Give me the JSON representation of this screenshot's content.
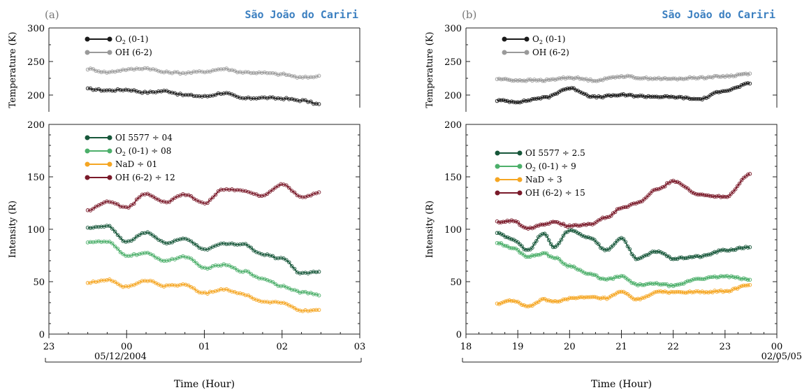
{
  "figure": {
    "panels": [
      {
        "label": "(a)",
        "site": "São João do Cariri",
        "date_label": "05/12/2004",
        "xlabel": "Time (Hour)",
        "x_ticks": [
          "23",
          "00",
          "01",
          "02",
          "03"
        ],
        "temp_ylabel": "Temperature (K)",
        "temp_ticks": [
          "200",
          "250",
          "300"
        ],
        "int_ylabel": "Intensity (R)",
        "int_ticks": [
          "0",
          "50",
          "100",
          "150",
          "200"
        ],
        "temp_legend": [
          {
            "prefix": "O",
            "sub": "2",
            "suffix": " (0-1)"
          },
          {
            "prefix": "OH (6-2)",
            "sub": "",
            "suffix": ""
          }
        ],
        "int_legend": [
          {
            "prefix": "OI 5577 ÷ 04",
            "sub": "",
            "suffix": ""
          },
          {
            "prefix": "O",
            "sub": "2",
            "suffix": " (0-1) ÷ 08"
          },
          {
            "prefix": "NaD ÷ 01",
            "sub": "",
            "suffix": ""
          },
          {
            "prefix": "OH (6-2) ÷ 12",
            "sub": "",
            "suffix": ""
          }
        ]
      },
      {
        "label": "(b)",
        "site": "São João do Cariri",
        "date_label": "02/05/05",
        "xlabel": "Time (Hour)",
        "x_ticks": [
          "18",
          "19",
          "20",
          "21",
          "22",
          "23",
          "00"
        ],
        "temp_ylabel": "Temperature (K)",
        "temp_ticks": [
          "200",
          "250",
          "300"
        ],
        "int_ylabel": "Intensity (R)",
        "int_ticks": [
          "0",
          "50",
          "100",
          "150",
          "200"
        ],
        "temp_legend": [
          {
            "prefix": "O",
            "sub": "2",
            "suffix": " (0-1)"
          },
          {
            "prefix": "OH (6-2)",
            "sub": "",
            "suffix": ""
          }
        ],
        "int_legend": [
          {
            "prefix": "OI 5577 ÷ 2.5",
            "sub": "",
            "suffix": ""
          },
          {
            "prefix": "O",
            "sub": "2",
            "suffix": " (0-1) ÷ 9"
          },
          {
            "prefix": "NaD ÷ 3",
            "sub": "",
            "suffix": ""
          },
          {
            "prefix": "OH (6-2) ÷ 15",
            "sub": "",
            "suffix": ""
          }
        ]
      }
    ]
  },
  "colors": {
    "O2_temp": "#1a1a1a",
    "OH_temp": "#9a9a9a",
    "OI5577": "#17573a",
    "O2_int": "#4caf6a",
    "NaD": "#f5a623",
    "OH_int": "#7a1a2a",
    "title": "#3b7fc0"
  },
  "chart_data": [
    {
      "type": "line",
      "panel": "a",
      "subplot": "temperature",
      "x_unit": "hour",
      "xlim": [
        23,
        27
      ],
      "ylim": [
        175,
        300
      ],
      "series": [
        {
          "name": "O2 (0-1)",
          "x": [
            23.5,
            23.75,
            24.0,
            24.25,
            24.5,
            24.75,
            25.0,
            25.25,
            25.5,
            25.75,
            26.0,
            26.25,
            26.5
          ],
          "y": [
            209,
            207,
            208,
            204,
            206,
            200,
            198,
            203,
            195,
            196,
            195,
            192,
            186
          ]
        },
        {
          "name": "OH (6-2)",
          "x": [
            23.5,
            23.75,
            24.0,
            24.25,
            24.5,
            24.75,
            25.0,
            25.25,
            25.5,
            25.75,
            26.0,
            26.25,
            26.5
          ],
          "y": [
            239,
            234,
            238,
            240,
            234,
            233,
            235,
            239,
            234,
            233,
            231,
            226,
            228
          ]
        }
      ]
    },
    {
      "type": "line",
      "panel": "a",
      "subplot": "intensity",
      "x_unit": "hour",
      "xlim": [
        23,
        27
      ],
      "ylim": [
        0,
        200
      ],
      "series": [
        {
          "name": "OI 5577 ÷ 04",
          "x": [
            23.5,
            23.75,
            24.0,
            24.25,
            24.5,
            24.75,
            25.0,
            25.25,
            25.5,
            25.75,
            26.0,
            26.25,
            26.5
          ],
          "y": [
            101,
            103,
            88,
            97,
            87,
            91,
            81,
            86,
            86,
            76,
            72,
            58,
            60
          ]
        },
        {
          "name": "O2 (0-1) ÷ 08",
          "x": [
            23.5,
            23.75,
            24.0,
            24.25,
            24.5,
            24.75,
            25.0,
            25.25,
            25.5,
            25.75,
            26.0,
            26.25,
            26.5
          ],
          "y": [
            88,
            88,
            75,
            77,
            70,
            74,
            63,
            66,
            60,
            53,
            46,
            40,
            37
          ]
        },
        {
          "name": "NaD ÷ 01",
          "x": [
            23.5,
            23.75,
            24.0,
            24.25,
            24.5,
            24.75,
            25.0,
            25.25,
            25.5,
            25.75,
            26.0,
            26.25,
            26.5
          ],
          "y": [
            49,
            52,
            45,
            51,
            46,
            47,
            39,
            43,
            38,
            31,
            30,
            22,
            23
          ]
        },
        {
          "name": "OH (6-2) ÷ 12",
          "x": [
            23.5,
            23.75,
            24.0,
            24.25,
            24.5,
            24.75,
            25.0,
            25.25,
            25.5,
            25.75,
            26.0,
            26.25,
            26.5
          ],
          "y": [
            118,
            126,
            121,
            134,
            126,
            133,
            125,
            138,
            137,
            132,
            143,
            131,
            135
          ]
        }
      ]
    },
    {
      "type": "line",
      "panel": "b",
      "subplot": "temperature",
      "x_unit": "hour",
      "xlim": [
        18,
        24
      ],
      "ylim": [
        175,
        300
      ],
      "series": [
        {
          "name": "O2 (0-1)",
          "x": [
            18.6,
            19.0,
            19.5,
            20.0,
            20.5,
            21.0,
            21.5,
            22.0,
            22.5,
            23.0,
            23.5
          ],
          "y": [
            192,
            190,
            196,
            210,
            197,
            200,
            198,
            197,
            194,
            207,
            217
          ]
        },
        {
          "name": "OH (6-2)",
          "x": [
            18.6,
            19.0,
            19.5,
            20.0,
            20.5,
            21.0,
            21.5,
            22.0,
            22.5,
            23.0,
            23.5
          ],
          "y": [
            224,
            222,
            222,
            226,
            222,
            228,
            225,
            224,
            226,
            228,
            232
          ]
        }
      ]
    },
    {
      "type": "line",
      "panel": "b",
      "subplot": "intensity",
      "x_unit": "hour",
      "xlim": [
        18,
        24
      ],
      "ylim": [
        0,
        200
      ],
      "series": [
        {
          "name": "OI 5577 ÷ 2.5",
          "x": [
            18.6,
            18.9,
            19.2,
            19.5,
            19.7,
            20.0,
            20.4,
            20.7,
            21.0,
            21.3,
            21.7,
            22.0,
            22.5,
            23.0,
            23.5
          ],
          "y": [
            97,
            90,
            80,
            96,
            83,
            99,
            92,
            80,
            91,
            72,
            79,
            72,
            74,
            80,
            83
          ]
        },
        {
          "name": "O2 (0-1) ÷ 9",
          "x": [
            18.6,
            18.9,
            19.2,
            19.5,
            19.7,
            20.0,
            20.4,
            20.7,
            21.0,
            21.3,
            21.7,
            22.0,
            22.5,
            23.0,
            23.5
          ],
          "y": [
            87,
            82,
            74,
            77,
            73,
            65,
            57,
            52,
            55,
            47,
            48,
            46,
            53,
            55,
            52
          ]
        },
        {
          "name": "NaD ÷ 3",
          "x": [
            18.6,
            18.9,
            19.2,
            19.5,
            19.7,
            20.0,
            20.4,
            20.7,
            21.0,
            21.3,
            21.7,
            22.0,
            22.5,
            23.0,
            23.5
          ],
          "y": [
            29,
            32,
            26,
            33,
            31,
            34,
            35,
            34,
            40,
            33,
            40,
            40,
            40,
            41,
            47
          ]
        },
        {
          "name": "OH (6-2) ÷ 15",
          "x": [
            18.6,
            18.9,
            19.2,
            19.5,
            19.7,
            20.0,
            20.4,
            20.7,
            21.0,
            21.3,
            21.7,
            22.0,
            22.5,
            23.0,
            23.5
          ],
          "y": [
            107,
            108,
            101,
            105,
            107,
            103,
            105,
            111,
            120,
            125,
            138,
            146,
            133,
            131,
            153
          ]
        }
      ]
    }
  ]
}
